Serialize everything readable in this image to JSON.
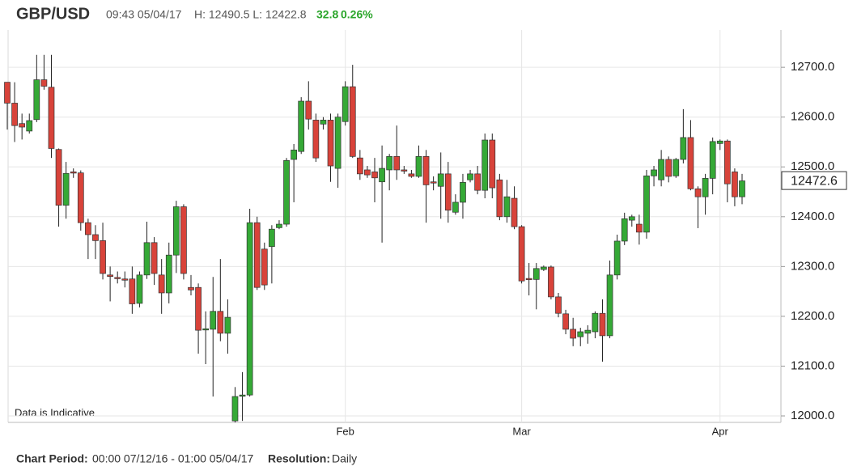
{
  "header": {
    "symbol": "GBP/USD",
    "time": "09:43 05/04/17",
    "high_low": "H: 12490.5 L: 12422.8",
    "change": "32.8",
    "change_pct": "0.26%"
  },
  "footer": {
    "period_label": "Chart Period:",
    "period": "00:00 07/12/16 - 01:00 05/04/17",
    "resolution_label": "Resolution:",
    "resolution": "Daily"
  },
  "chart_data": {
    "type": "candlestick",
    "annotation": "Data is Indicative",
    "last_value": 12472.6,
    "up_color": "#35a936",
    "down_color": "#d8433a",
    "grid": true,
    "ylim": [
      11987,
      12775
    ],
    "yticks": [
      {
        "value": 12000,
        "label": "12000.0"
      },
      {
        "value": 12100,
        "label": "12100.0"
      },
      {
        "value": 12200,
        "label": "12200.0"
      },
      {
        "value": 12300,
        "label": "12300.0"
      },
      {
        "value": 12400,
        "label": "12400.0"
      },
      {
        "value": 12500,
        "label": "12500.0"
      },
      {
        "value": 12600,
        "label": "12600.0"
      },
      {
        "value": 12700,
        "label": "12700.0"
      }
    ],
    "categories": [
      null,
      null,
      null,
      null,
      null,
      null,
      null,
      null,
      null,
      null,
      null,
      null,
      null,
      null,
      null,
      null,
      null,
      null,
      null,
      null,
      null,
      null,
      null,
      null,
      null,
      null,
      null,
      null,
      null,
      null,
      null,
      null,
      null,
      null,
      null,
      null,
      null,
      null,
      null,
      null,
      null,
      null,
      null,
      null,
      null,
      null,
      "Feb",
      null,
      null,
      null,
      null,
      null,
      null,
      null,
      null,
      null,
      null,
      null,
      null,
      null,
      null,
      null,
      null,
      null,
      null,
      null,
      null,
      null,
      null,
      null,
      "Mar",
      null,
      null,
      null,
      null,
      null,
      null,
      null,
      null,
      null,
      null,
      null,
      null,
      null,
      null,
      null,
      null,
      null,
      null,
      null,
      null,
      null,
      null,
      null,
      null,
      null,
      null,
      "Apr",
      null,
      null,
      null
    ],
    "open": [
      12670,
      12628,
      12587,
      12572,
      12595,
      12675,
      12660,
      12535,
      12423,
      12490,
      12488,
      12388,
      12364,
      12352,
      12283,
      12278,
      12275,
      12275,
      12226,
      12283,
      12348,
      12283,
      12247,
      12323,
      12420,
      12258,
      12258,
      12175,
      12174,
      12210,
      12166,
      11990,
      12040,
      12042,
      12388,
      12335,
      12340,
      12378,
      12385,
      12515,
      12531,
      12632,
      12594,
      12586,
      12594,
      12497,
      12591,
      12661,
      12518,
      12494,
      12490,
      12470,
      12494,
      12521,
      12494,
      12486,
      12481,
      12521,
      12470,
      12461,
      12486,
      12409,
      12429,
      12474,
      12486,
      12453,
      12554,
      12474,
      12400,
      12437,
      12380,
      12276,
      12274,
      12294,
      12299,
      12239,
      12205,
      12174,
      12159,
      12166,
      12169,
      12206,
      12161,
      12283,
      12351,
      12393,
      12385,
      12369,
      12482,
      12474,
      12515,
      12482,
      12515,
      12559,
      12456,
      12440,
      12477,
      12547,
      12552,
      12490,
      12440
    ],
    "high": [
      12670,
      12670,
      12607,
      12607,
      12725,
      12725,
      12725,
      12537,
      12510,
      12497,
      12493,
      12396,
      12383,
      12388,
      12300,
      12290,
      12290,
      12300,
      12290,
      12390,
      12359,
      12315,
      12348,
      12432,
      12425,
      12283,
      12266,
      12210,
      12279,
      12315,
      12234,
      12058,
      12088,
      12416,
      12400,
      12348,
      12383,
      12393,
      12518,
      12546,
      12640,
      12672,
      12607,
      12600,
      12607,
      12607,
      12672,
      12705,
      12534,
      12502,
      12518,
      12543,
      12526,
      12583,
      12502,
      12494,
      12543,
      12534,
      12481,
      12529,
      12510,
      12445,
      12486,
      12494,
      12502,
      12567,
      12567,
      12486,
      12474,
      12461,
      12383,
      12307,
      12307,
      12302,
      12302,
      12247,
      12213,
      12197,
      12177,
      12182,
      12210,
      12234,
      12312,
      12364,
      12408,
      12404,
      12404,
      12494,
      12502,
      12534,
      12521,
      12518,
      12616,
      12594,
      12461,
      12486,
      12559,
      12555,
      12555,
      12497,
      12486
    ],
    "low": [
      12575,
      12550,
      12555,
      12567,
      12590,
      12655,
      12518,
      12380,
      12396,
      12478,
      12372,
      12315,
      12315,
      12274,
      12230,
      12266,
      12258,
      12205,
      12218,
      12275,
      12263,
      12205,
      12226,
      12287,
      12274,
      12242,
      12125,
      12104,
      12039,
      12150,
      12125,
      11987,
      11990,
      12039,
      12253,
      12253,
      12266,
      12375,
      12380,
      12429,
      12526,
      12575,
      12510,
      12575,
      12470,
      12458,
      12583,
      12518,
      12474,
      12478,
      12429,
      12348,
      12453,
      12474,
      12486,
      12478,
      12478,
      12388,
      12453,
      12396,
      12388,
      12404,
      12396,
      12469,
      12445,
      12437,
      12437,
      12393,
      12388,
      12375,
      12266,
      12242,
      12214,
      12291,
      12234,
      12198,
      12164,
      12140,
      12140,
      12145,
      12156,
      12109,
      12156,
      12274,
      12343,
      12380,
      12344,
      12356,
      12461,
      12461,
      12469,
      12478,
      12507,
      12453,
      12377,
      12404,
      12445,
      12534,
      12429,
      12421,
      12425
    ],
    "close": [
      12628,
      12583,
      12580,
      12593,
      12675,
      12662,
      12537,
      12423,
      12487,
      12488,
      12388,
      12364,
      12352,
      12286,
      12280,
      12277,
      12274,
      12225,
      12283,
      12348,
      12286,
      12247,
      12323,
      12420,
      12286,
      12253,
      12172,
      12175,
      12210,
      12166,
      12198,
      12039,
      12042,
      12388,
      12258,
      12263,
      12375,
      12385,
      12513,
      12534,
      12632,
      12596,
      12518,
      12594,
      12502,
      12600,
      12661,
      12521,
      12486,
      12484,
      12478,
      12497,
      12521,
      12494,
      12492,
      12481,
      12521,
      12464,
      12469,
      12486,
      12413,
      12429,
      12469,
      12486,
      12453,
      12554,
      12458,
      12400,
      12440,
      12380,
      12271,
      12274,
      12296,
      12299,
      12239,
      12206,
      12174,
      12156,
      12169,
      12172,
      12206,
      12161,
      12283,
      12351,
      12396,
      12400,
      12369,
      12482,
      12494,
      12515,
      12481,
      12515,
      12559,
      12456,
      12440,
      12477,
      12551,
      12552,
      12466,
      12440,
      12472
    ]
  }
}
